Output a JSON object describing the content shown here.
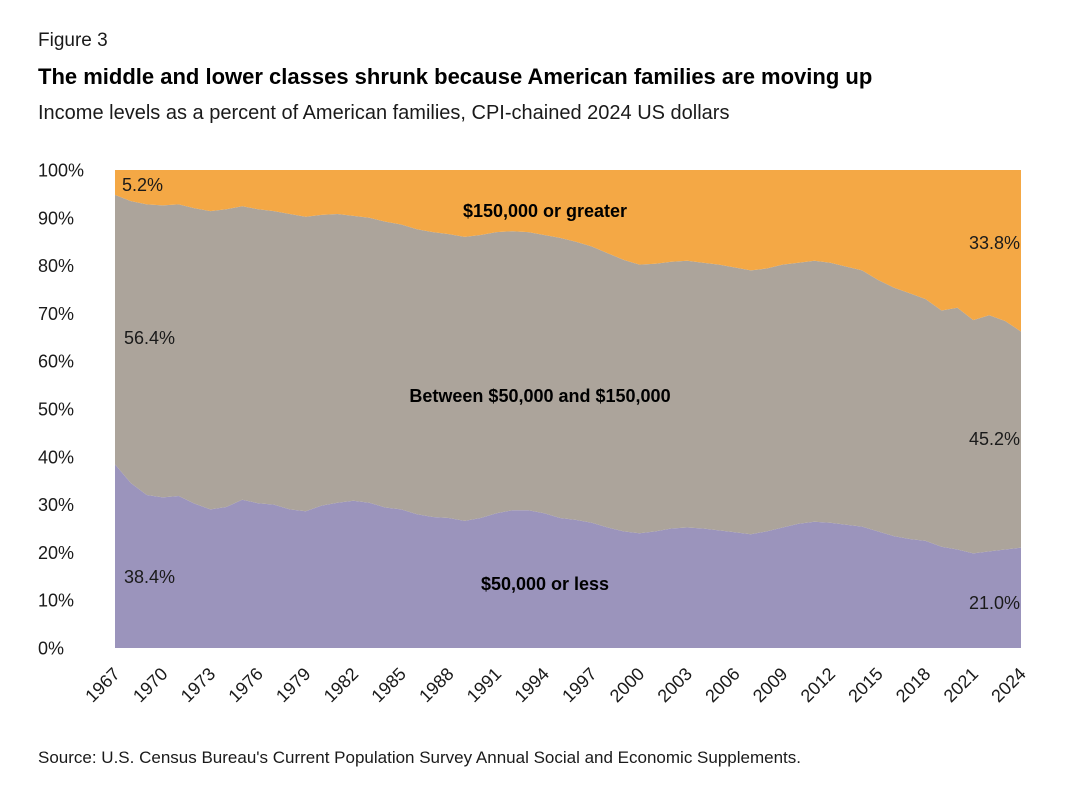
{
  "figure_label": "Figure 3",
  "source": "Source: U.S. Census Bureau's Current Population Survey Annual Social and Economic Supplements.",
  "chart_data": {
    "type": "area",
    "stacked": true,
    "percent_total": true,
    "title": "The middle and lower classes shrunk because American families are moving up",
    "subtitle": "Income levels as a percent of American families, CPI-chained 2024 US dollars",
    "ylim": [
      0,
      100
    ],
    "grid": false,
    "legend": "labels-inside-areas",
    "x": [
      1967,
      1968,
      1969,
      1970,
      1971,
      1972,
      1973,
      1974,
      1975,
      1976,
      1977,
      1978,
      1979,
      1980,
      1981,
      1982,
      1983,
      1984,
      1985,
      1986,
      1987,
      1988,
      1989,
      1990,
      1991,
      1992,
      1993,
      1994,
      1995,
      1996,
      1997,
      1998,
      1999,
      2000,
      2001,
      2002,
      2003,
      2004,
      2005,
      2006,
      2007,
      2008,
      2009,
      2010,
      2011,
      2012,
      2013,
      2014,
      2015,
      2016,
      2017,
      2018,
      2019,
      2020,
      2021,
      2022,
      2023,
      2024
    ],
    "x_tick_years": [
      1967,
      1970,
      1973,
      1976,
      1979,
      1982,
      1985,
      1988,
      1991,
      1994,
      1997,
      2000,
      2003,
      2006,
      2009,
      2012,
      2015,
      2018,
      2021,
      2024
    ],
    "y_ticks": [
      {
        "value": 0,
        "label": "0%"
      },
      {
        "value": 10,
        "label": "10%"
      },
      {
        "value": 20,
        "label": "20%"
      },
      {
        "value": 30,
        "label": "30%"
      },
      {
        "value": 40,
        "label": "40%"
      },
      {
        "value": 50,
        "label": "50%"
      },
      {
        "value": 60,
        "label": "60%"
      },
      {
        "value": 70,
        "label": "70%"
      },
      {
        "value": 80,
        "label": "80%"
      },
      {
        "value": 90,
        "label": "90%"
      },
      {
        "value": 100,
        "label": "100%"
      }
    ],
    "series": [
      {
        "name": "$50,000 or less",
        "color": "#9B94BC",
        "values": [
          38.4,
          34.5,
          32.0,
          31.5,
          31.8,
          30.2,
          29.0,
          29.5,
          31.0,
          30.3,
          30.0,
          29.0,
          28.6,
          29.8,
          30.4,
          30.8,
          30.4,
          29.4,
          29.0,
          28.0,
          27.4,
          27.2,
          26.6,
          27.2,
          28.2,
          28.8,
          28.8,
          28.2,
          27.2,
          26.8,
          26.2,
          25.2,
          24.4,
          24.0,
          24.4,
          25.0,
          25.2,
          25.0,
          24.6,
          24.2,
          23.8,
          24.4,
          25.2,
          26.0,
          26.4,
          26.2,
          25.8,
          25.4,
          24.4,
          23.4,
          22.8,
          22.4,
          21.2,
          20.6,
          19.8,
          20.2,
          20.6,
          21.0
        ]
      },
      {
        "name": "Between $50,000 and $150,000",
        "color": "#ACA49B",
        "values": [
          56.4,
          59.0,
          60.8,
          61.1,
          61.0,
          61.8,
          62.4,
          62.3,
          61.4,
          61.5,
          61.4,
          61.8,
          61.6,
          60.8,
          60.4,
          59.6,
          59.6,
          59.8,
          59.6,
          59.6,
          59.6,
          59.4,
          59.4,
          59.2,
          58.8,
          58.4,
          58.2,
          58.2,
          58.6,
          58.2,
          57.8,
          57.4,
          56.8,
          56.2,
          56.0,
          55.8,
          55.8,
          55.6,
          55.6,
          55.4,
          55.2,
          55.0,
          55.0,
          54.6,
          54.6,
          54.4,
          54.0,
          53.6,
          52.6,
          52.0,
          51.4,
          50.6,
          49.4,
          50.6,
          48.8,
          49.4,
          47.8,
          45.2
        ]
      },
      {
        "name": "$150,000 or greater",
        "color": "#F4A845",
        "values": [
          5.2,
          6.5,
          7.2,
          7.4,
          7.2,
          8.0,
          8.6,
          8.2,
          7.6,
          8.2,
          8.6,
          9.2,
          9.8,
          9.4,
          9.2,
          9.6,
          10.0,
          10.8,
          11.4,
          12.4,
          13.0,
          13.4,
          14.0,
          13.6,
          13.0,
          12.8,
          13.0,
          13.6,
          14.2,
          15.0,
          16.0,
          17.4,
          18.8,
          19.8,
          19.6,
          19.2,
          19.0,
          19.4,
          19.8,
          20.4,
          21.0,
          20.6,
          19.8,
          19.4,
          19.0,
          19.4,
          20.2,
          21.0,
          23.0,
          24.6,
          25.8,
          27.0,
          29.4,
          28.8,
          31.4,
          30.4,
          31.6,
          33.8
        ]
      }
    ],
    "labels": {
      "upper_area": "$150,000 or greater",
      "middle_area": "Between $50,000 and $150,000",
      "lower_area": "$50,000 or less",
      "upper_start": "5.2%",
      "middle_start": "56.4%",
      "lower_start": "38.4%",
      "upper_end": "33.8%",
      "middle_end": "45.2%",
      "lower_end": "21.0%"
    }
  }
}
